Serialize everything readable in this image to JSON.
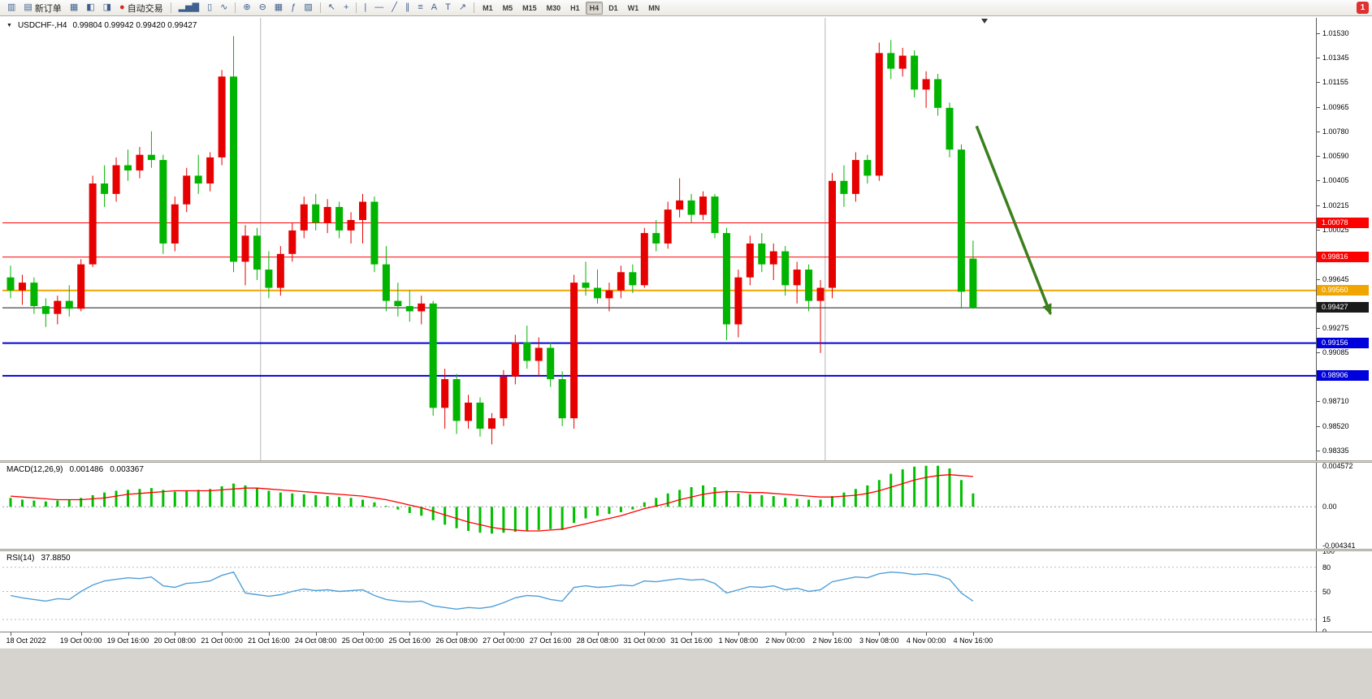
{
  "toolbar": {
    "buttons": [
      {
        "name": "new-chart-button",
        "glyph": "▥"
      },
      {
        "name": "new-order-button",
        "glyph": "▤",
        "label": "新订单"
      },
      {
        "name": "chart-profiles-button",
        "glyph": "▦"
      },
      {
        "name": "market-watch-button",
        "glyph": "◧"
      },
      {
        "name": "data-window-button",
        "glyph": "◨"
      },
      {
        "name": "auto-trading-button",
        "glyph": "●",
        "glyph_color": "#d42a20",
        "label": "自动交易"
      },
      {
        "sep": true
      },
      {
        "name": "bar-chart-button",
        "glyph": "▂▅▇"
      },
      {
        "name": "candlestick-chart-button",
        "glyph": "▯"
      },
      {
        "name": "line-chart-button",
        "glyph": "∿"
      },
      {
        "sep": true
      },
      {
        "name": "zoom-in-button",
        "glyph": "⊕"
      },
      {
        "name": "zoom-out-button",
        "glyph": "⊖"
      },
      {
        "name": "tile-windows-button",
        "glyph": "▦"
      },
      {
        "name": "indicators-button",
        "glyph": "ƒ"
      },
      {
        "name": "templates-button",
        "glyph": "▨"
      },
      {
        "sep": true
      },
      {
        "name": "cursor-button",
        "glyph": "↖"
      },
      {
        "name": "crosshair-button",
        "glyph": "+"
      },
      {
        "sep": true
      },
      {
        "name": "vertical-line-button",
        "glyph": "|"
      },
      {
        "name": "horizontal-line-button",
        "glyph": "—"
      },
      {
        "name": "trendline-button",
        "glyph": "╱"
      },
      {
        "name": "channel-button",
        "glyph": "∥"
      },
      {
        "name": "fibonacci-button",
        "glyph": "≡"
      },
      {
        "name": "text-button",
        "glyph": "A"
      },
      {
        "name": "label-button",
        "glyph": "T"
      },
      {
        "name": "arrows-button",
        "glyph": "↗"
      },
      {
        "sep": true
      }
    ],
    "timeframes": [
      "M1",
      "M5",
      "M15",
      "M30",
      "H1",
      "H4",
      "D1",
      "W1",
      "MN"
    ],
    "active_timeframe": "H4",
    "notification_count": "1"
  },
  "chart": {
    "symbol_period": "USDCHF-,H4",
    "ohlc_text": "0.99804 0.99942 0.99420 0.99427"
  },
  "chart_data": {
    "type": "candlestick",
    "symbol": "USDCHF-",
    "timeframe": "H4",
    "candles": [
      [
        0.9966,
        0.9975,
        0.995,
        0.9956
      ],
      [
        0.9956,
        0.9968,
        0.9945,
        0.9962
      ],
      [
        0.9962,
        0.9966,
        0.9938,
        0.9944
      ],
      [
        0.9944,
        0.995,
        0.9928,
        0.9938
      ],
      [
        0.9938,
        0.9952,
        0.993,
        0.9948
      ],
      [
        0.9948,
        0.996,
        0.9936,
        0.9942
      ],
      [
        0.9942,
        0.998,
        0.994,
        0.9976
      ],
      [
        0.9976,
        1.0044,
        0.9974,
        1.0038
      ],
      [
        1.0038,
        1.0052,
        1.002,
        1.003
      ],
      [
        1.003,
        1.0058,
        1.0024,
        1.0052
      ],
      [
        1.0052,
        1.0064,
        1.004,
        1.0048
      ],
      [
        1.0048,
        1.0066,
        1.0042,
        1.006
      ],
      [
        1.006,
        1.0078,
        1.005,
        1.0056
      ],
      [
        1.0056,
        1.006,
        0.9984,
        0.9992
      ],
      [
        0.9992,
        1.0028,
        0.9986,
        1.0022
      ],
      [
        1.0022,
        1.005,
        1.0016,
        1.0044
      ],
      [
        1.0044,
        1.006,
        1.003,
        1.0038
      ],
      [
        1.0038,
        1.0062,
        1.0032,
        1.0058
      ],
      [
        1.0058,
        1.0125,
        1.0052,
        1.012
      ],
      [
        1.012,
        1.0151,
        0.997,
        0.9978
      ],
      [
        0.9978,
        1.0006,
        0.996,
        0.9998
      ],
      [
        0.9998,
        1.0004,
        0.9964,
        0.9972
      ],
      [
        0.9972,
        0.9986,
        0.995,
        0.9958
      ],
      [
        0.9958,
        0.999,
        0.9952,
        0.9984
      ],
      [
        0.9984,
        1.0008,
        0.9978,
        1.0002
      ],
      [
        1.0002,
        1.0028,
        0.9996,
        1.0022
      ],
      [
        1.0022,
        1.003,
        1.0002,
        1.0008
      ],
      [
        1.0008,
        1.0026,
        1.0,
        1.002
      ],
      [
        1.002,
        1.0024,
        0.9996,
        1.0002
      ],
      [
        1.0002,
        1.0016,
        0.9992,
        1.001
      ],
      [
        1.001,
        1.003,
        0.9992,
        1.0024
      ],
      [
        1.0024,
        1.0028,
        0.997,
        0.9976
      ],
      [
        0.9976,
        0.999,
        0.994,
        0.9948
      ],
      [
        0.9948,
        0.9962,
        0.9936,
        0.9944
      ],
      [
        0.9944,
        0.9956,
        0.9932,
        0.994
      ],
      [
        0.994,
        0.9952,
        0.993,
        0.9946
      ],
      [
        0.9946,
        0.9948,
        0.986,
        0.9866
      ],
      [
        0.9866,
        0.9896,
        0.985,
        0.9888
      ],
      [
        0.9888,
        0.9892,
        0.9846,
        0.9856
      ],
      [
        0.9856,
        0.9876,
        0.985,
        0.987
      ],
      [
        0.987,
        0.9874,
        0.9844,
        0.985
      ],
      [
        0.985,
        0.9862,
        0.9838,
        0.9858
      ],
      [
        0.9858,
        0.9895,
        0.9852,
        0.989
      ],
      [
        0.989,
        0.9922,
        0.9884,
        0.9916
      ],
      [
        0.9916,
        0.9929,
        0.9896,
        0.9902
      ],
      [
        0.9902,
        0.992,
        0.989,
        0.9912
      ],
      [
        0.9912,
        0.9916,
        0.9882,
        0.9888
      ],
      [
        0.9888,
        0.9894,
        0.9852,
        0.9858
      ],
      [
        0.9858,
        0.9968,
        0.985,
        0.9962
      ],
      [
        0.9962,
        0.9978,
        0.9952,
        0.9958
      ],
      [
        0.9958,
        0.9972,
        0.9946,
        0.995
      ],
      [
        0.995,
        0.9962,
        0.994,
        0.9956
      ],
      [
        0.9956,
        0.9975,
        0.995,
        0.997
      ],
      [
        0.997,
        0.9976,
        0.9954,
        0.996
      ],
      [
        0.996,
        1.0004,
        0.9958,
        1.0
      ],
      [
        1.0,
        1.001,
        0.9986,
        0.9992
      ],
      [
        0.9992,
        1.0024,
        0.9988,
        1.0018
      ],
      [
        1.0018,
        1.0042,
        1.0012,
        1.0025
      ],
      [
        1.0025,
        1.003,
        1.0008,
        1.0014
      ],
      [
        1.0014,
        1.0032,
        1.001,
        1.0028
      ],
      [
        1.0028,
        1.003,
        0.9996,
        1.0
      ],
      [
        1.0,
        1.0004,
        0.9918,
        0.993
      ],
      [
        0.993,
        0.9972,
        0.992,
        0.9966
      ],
      [
        0.9966,
        0.9998,
        0.996,
        0.9992
      ],
      [
        0.9992,
        1.0,
        0.997,
        0.9976
      ],
      [
        0.9976,
        0.9992,
        0.9964,
        0.9986
      ],
      [
        0.9986,
        0.999,
        0.9952,
        0.996
      ],
      [
        0.996,
        0.9978,
        0.9946,
        0.9972
      ],
      [
        0.9972,
        0.9976,
        0.994,
        0.9948
      ],
      [
        0.9948,
        0.9964,
        0.9908,
        0.9958
      ],
      [
        0.9958,
        1.0046,
        0.995,
        1.004
      ],
      [
        1.004,
        1.0052,
        1.002,
        1.003
      ],
      [
        1.003,
        1.0062,
        1.0024,
        1.0056
      ],
      [
        1.0056,
        1.006,
        1.0038,
        1.0044
      ],
      [
        1.0044,
        1.0146,
        1.004,
        1.0138
      ],
      [
        1.0138,
        1.0148,
        1.0118,
        1.0126
      ],
      [
        1.0126,
        1.0142,
        1.012,
        1.0136
      ],
      [
        1.0136,
        1.014,
        1.0104,
        1.011
      ],
      [
        1.011,
        1.0124,
        1.0096,
        1.0118
      ],
      [
        1.0118,
        1.0122,
        1.009,
        1.0096
      ],
      [
        1.0096,
        1.01,
        1.0058,
        1.0064
      ],
      [
        1.0064,
        1.0068,
        0.9942,
        0.9955
      ],
      [
        0.99804,
        0.99942,
        0.9942,
        0.99427
      ]
    ],
    "lines": [
      {
        "name": "resistance-1",
        "price": 1.00078,
        "label": "1.00078",
        "color": "#ff0000",
        "width": 1
      },
      {
        "name": "resistance-2",
        "price": 0.99816,
        "label": "0.99816",
        "color": "#ff0000",
        "width": 1
      },
      {
        "name": "pivot-line",
        "price": 0.9956,
        "label": "0.99560",
        "color": "#f0a500",
        "width": 2
      },
      {
        "name": "bid-price-line",
        "price": 0.99427,
        "label": "0.99427",
        "color": "#1a1a1a",
        "width": 1
      },
      {
        "name": "support-1",
        "price": 0.99156,
        "label": "0.99156",
        "color": "#0000dd",
        "width": 2
      },
      {
        "name": "support-2",
        "price": 0.98906,
        "label": "0.98906",
        "color": "#0000dd",
        "width": 2
      }
    ],
    "vlines": [
      21.3,
      69.4
    ],
    "arrow": {
      "from_index": 82.3,
      "from_price": 1.0082,
      "to_index": 88.6,
      "to_price": 0.9938,
      "color": "#3b7f1e"
    },
    "price_ticks": [
      {
        "p": 1.0153,
        "t": "1.01530"
      },
      {
        "p": 1.01345,
        "t": "1.01345"
      },
      {
        "p": 1.01155,
        "t": "1.01155"
      },
      {
        "p": 1.00965,
        "t": "1.00965"
      },
      {
        "p": 1.0078,
        "t": "1.00780"
      },
      {
        "p": 1.0059,
        "t": "1.00590"
      },
      {
        "p": 1.00405,
        "t": "1.00405"
      },
      {
        "p": 1.00215,
        "t": "1.00215"
      },
      {
        "p": 1.00025,
        "t": "1.00025"
      },
      {
        "p": 0.99645,
        "t": "0.99645"
      },
      {
        "p": 0.99275,
        "t": "0.99275"
      },
      {
        "p": 0.99085,
        "t": "0.99085"
      },
      {
        "p": 0.9871,
        "t": "0.98710"
      },
      {
        "p": 0.9852,
        "t": "0.98520"
      },
      {
        "p": 0.98335,
        "t": "0.98335"
      }
    ],
    "time_labels": [
      {
        "i": 0,
        "t": "18 Oct 2022"
      },
      {
        "i": 6,
        "t": "19 Oct 00:00"
      },
      {
        "i": 10,
        "t": "19 Oct 16:00"
      },
      {
        "i": 14,
        "t": "20 Oct 08:00"
      },
      {
        "i": 18,
        "t": "21 Oct 00:00"
      },
      {
        "i": 22,
        "t": "21 Oct 16:00"
      },
      {
        "i": 26,
        "t": "24 Oct 08:00"
      },
      {
        "i": 30,
        "t": "25 Oct 00:00"
      },
      {
        "i": 34,
        "t": "25 Oct 16:00"
      },
      {
        "i": 38,
        "t": "26 Oct 08:00"
      },
      {
        "i": 42,
        "t": "27 Oct 00:00"
      },
      {
        "i": 46,
        "t": "27 Oct 16:00"
      },
      {
        "i": 50,
        "t": "28 Oct 08:00"
      },
      {
        "i": 54,
        "t": "31 Oct 00:00"
      },
      {
        "i": 58,
        "t": "31 Oct 16:00"
      },
      {
        "i": 62,
        "t": "1 Nov 08:00"
      },
      {
        "i": 66,
        "t": "2 Nov 00:00"
      },
      {
        "i": 70,
        "t": "2 Nov 16:00"
      },
      {
        "i": 74,
        "t": "3 Nov 08:00"
      },
      {
        "i": 78,
        "t": "4 Nov 00:00"
      },
      {
        "i": 82,
        "t": "4 Nov 16:00"
      }
    ]
  },
  "macd": {
    "name": "MACD(12,26,9)",
    "value_main": "0.001486",
    "value_signal": "0.003367",
    "scale_max": 0.004572,
    "scale_min": -0.004341,
    "scale_max_label": "0.004572",
    "scale_zero_label": "0.00",
    "scale_min_label": "-0.004341",
    "histogram": [
      0.001,
      0.0008,
      0.0007,
      0.0006,
      0.0007,
      0.0008,
      0.001,
      0.0013,
      0.0016,
      0.0018,
      0.0019,
      0.002,
      0.0021,
      0.0019,
      0.0017,
      0.0018,
      0.0019,
      0.002,
      0.0023,
      0.0026,
      0.0024,
      0.0021,
      0.0018,
      0.0016,
      0.0015,
      0.0014,
      0.0013,
      0.0012,
      0.0011,
      0.001,
      0.0008,
      0.0005,
      0.0001,
      -0.0003,
      -0.0007,
      -0.001,
      -0.0015,
      -0.002,
      -0.0024,
      -0.0027,
      -0.0029,
      -0.003,
      -0.0029,
      -0.0028,
      -0.0027,
      -0.0026,
      -0.0025,
      -0.0026,
      -0.0018,
      -0.0013,
      -0.001,
      -0.0008,
      -0.0006,
      -0.0003,
      0.0005,
      0.001,
      0.0015,
      0.0019,
      0.0022,
      0.0024,
      0.0022,
      0.0018,
      0.0015,
      0.0014,
      0.0013,
      0.0012,
      0.001,
      0.0009,
      0.0008,
      0.0008,
      0.0012,
      0.0016,
      0.002,
      0.0024,
      0.003,
      0.0037,
      0.0042,
      0.0045,
      0.0046,
      0.0046,
      0.0043,
      0.003,
      0.0015
    ],
    "signal": [
      0.0012,
      0.0011,
      0.001,
      0.0009,
      0.0008,
      0.0008,
      0.0008,
      0.0009,
      0.001,
      0.0012,
      0.0014,
      0.0015,
      0.0016,
      0.0017,
      0.0018,
      0.0018,
      0.0018,
      0.0018,
      0.0019,
      0.002,
      0.0021,
      0.0021,
      0.002,
      0.0019,
      0.0018,
      0.0017,
      0.0016,
      0.0015,
      0.0014,
      0.0013,
      0.0012,
      0.001,
      0.0008,
      0.0005,
      0.0002,
      -0.0001,
      -0.0005,
      -0.0009,
      -0.0013,
      -0.0017,
      -0.002,
      -0.0023,
      -0.0025,
      -0.0026,
      -0.0027,
      -0.0027,
      -0.0026,
      -0.0025,
      -0.0022,
      -0.0019,
      -0.0016,
      -0.0013,
      -0.001,
      -0.0006,
      -0.0002,
      0.0001,
      0.0004,
      0.0008,
      0.0011,
      0.0014,
      0.0016,
      0.0017,
      0.0017,
      0.0016,
      0.0016,
      0.0015,
      0.0014,
      0.0013,
      0.0012,
      0.0011,
      0.0011,
      0.0012,
      0.0013,
      0.0015,
      0.0018,
      0.0022,
      0.0026,
      0.003,
      0.0033,
      0.0035,
      0.0036,
      0.0035,
      0.0034
    ]
  },
  "rsi": {
    "name": "RSI(14)",
    "value": "37.8850",
    "levels": [
      80,
      50,
      15
    ],
    "scale_labels": [
      {
        "v": 100,
        "t": "100"
      },
      {
        "v": 80,
        "t": "80"
      },
      {
        "v": 50,
        "t": "50"
      },
      {
        "v": 15,
        "t": "15"
      },
      {
        "v": 0,
        "t": "0"
      }
    ],
    "values": [
      45,
      42,
      40,
      38,
      41,
      40,
      50,
      58,
      63,
      65,
      67,
      66,
      68,
      57,
      55,
      60,
      61,
      63,
      70,
      74,
      48,
      46,
      44,
      46,
      50,
      53,
      51,
      52,
      50,
      51,
      52,
      45,
      40,
      38,
      37,
      38,
      32,
      30,
      28,
      30,
      29,
      31,
      36,
      42,
      45,
      44,
      40,
      38,
      55,
      57,
      55,
      56,
      58,
      57,
      63,
      62,
      64,
      66,
      64,
      65,
      60,
      48,
      52,
      56,
      55,
      57,
      52,
      54,
      50,
      52,
      62,
      65,
      68,
      67,
      72,
      74,
      73,
      71,
      72,
      70,
      65,
      48,
      38
    ]
  },
  "colors": {
    "bull": "#e60000",
    "bear": "#00b400",
    "macd_hist": "#00c000",
    "macd_signal": "#ff0000",
    "rsi_line": "#4f9fd8"
  }
}
